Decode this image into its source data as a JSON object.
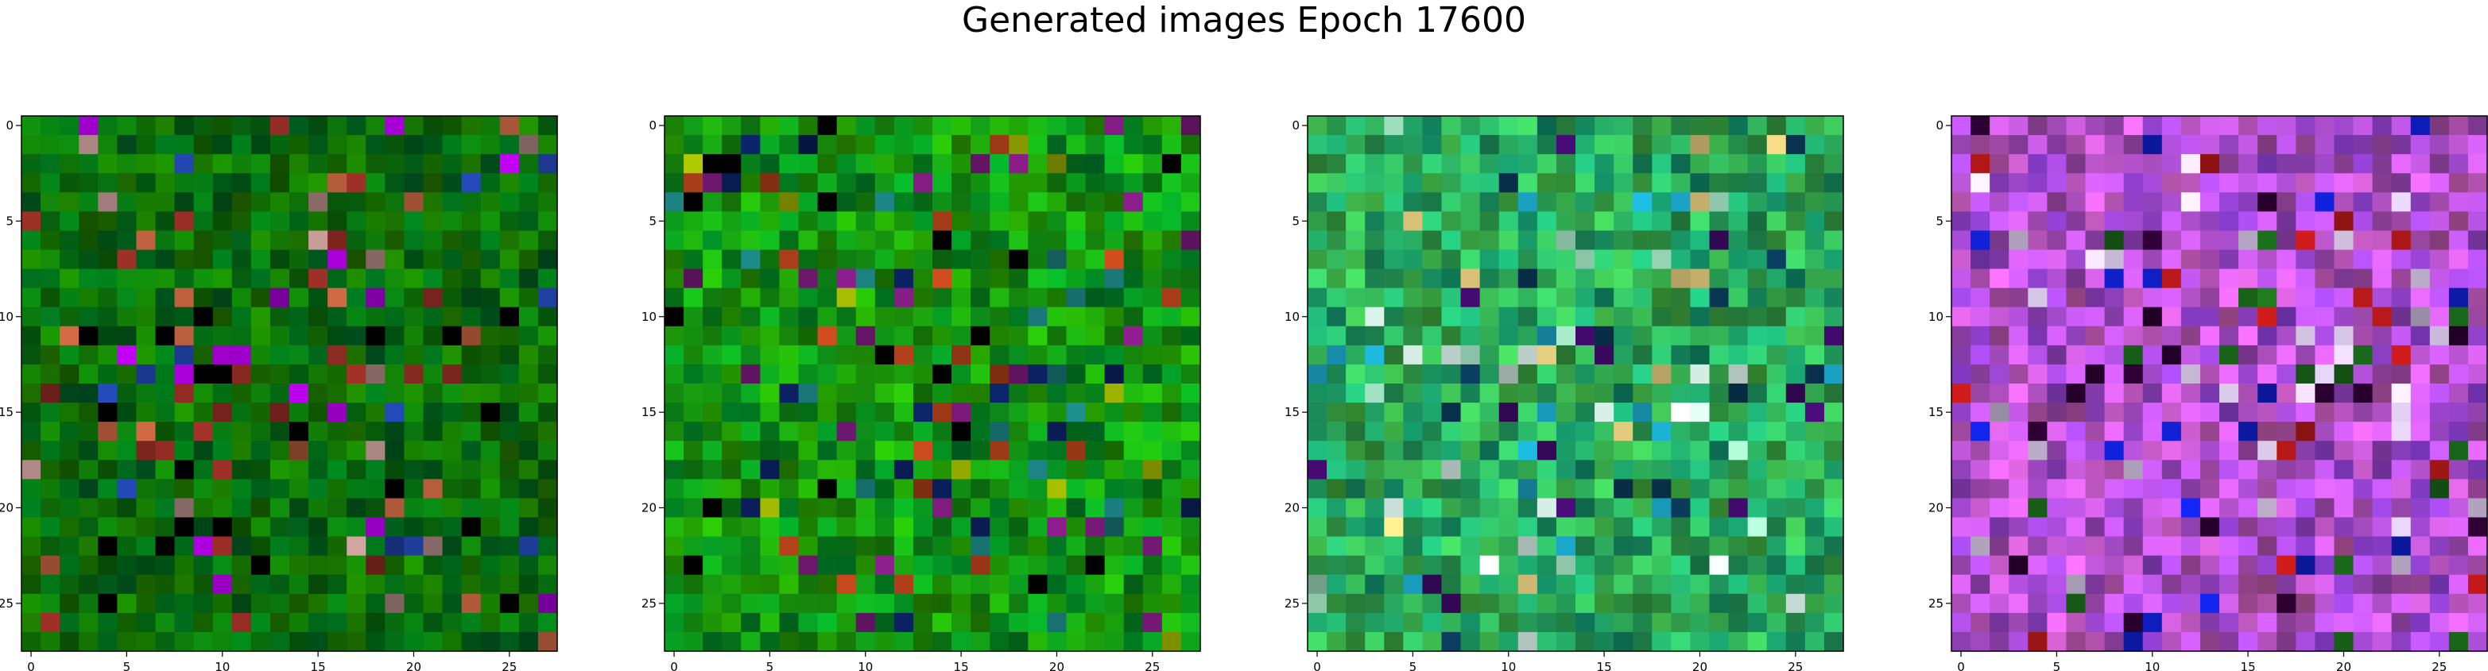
{
  "chart_data": {
    "type": "heatmap",
    "title": "Generated images Epoch 17600",
    "panel_count": 4,
    "grid_size": [
      28,
      28
    ],
    "x_ticks": [
      "0",
      "5",
      "10",
      "15",
      "20",
      "25"
    ],
    "y_ticks": [
      "0",
      "5",
      "10",
      "15",
      "20",
      "25"
    ],
    "tick_values": [
      0,
      5,
      10,
      15,
      20,
      25
    ],
    "xlim": [
      -0.5,
      27.5
    ],
    "ylim": [
      27.5,
      -0.5
    ],
    "panels": [
      {
        "name": "image-1",
        "palette": "dark-green",
        "base_color": "#0b6e0b",
        "accent_colors": [
          "#b08a86",
          "#b05a3a",
          "#1f3f9e",
          "#a300d0",
          "#8a2a22",
          "#000000"
        ]
      },
      {
        "name": "image-2",
        "palette": "green",
        "base_color": "#139513",
        "accent_colors": [
          "#0a1f5a",
          "#1a7a7a",
          "#b0401a",
          "#7a1a7a",
          "#000000",
          "#9ab000"
        ]
      },
      {
        "name": "image-3",
        "palette": "teal-green",
        "base_color": "#2aa65a",
        "accent_colors": [
          "#e8d080",
          "#400a6a",
          "#1aa0c0",
          "#a0e0c0",
          "#0a3a5a",
          "#d8f0e8"
        ]
      },
      {
        "name": "image-4",
        "palette": "purple-magenta",
        "base_color": "#b050d0",
        "accent_colors": [
          "#2a0030",
          "#e0d0f0",
          "#c01a1a",
          "#1a6a1a",
          "#1020d0",
          "#d0c0e0"
        ]
      }
    ]
  }
}
